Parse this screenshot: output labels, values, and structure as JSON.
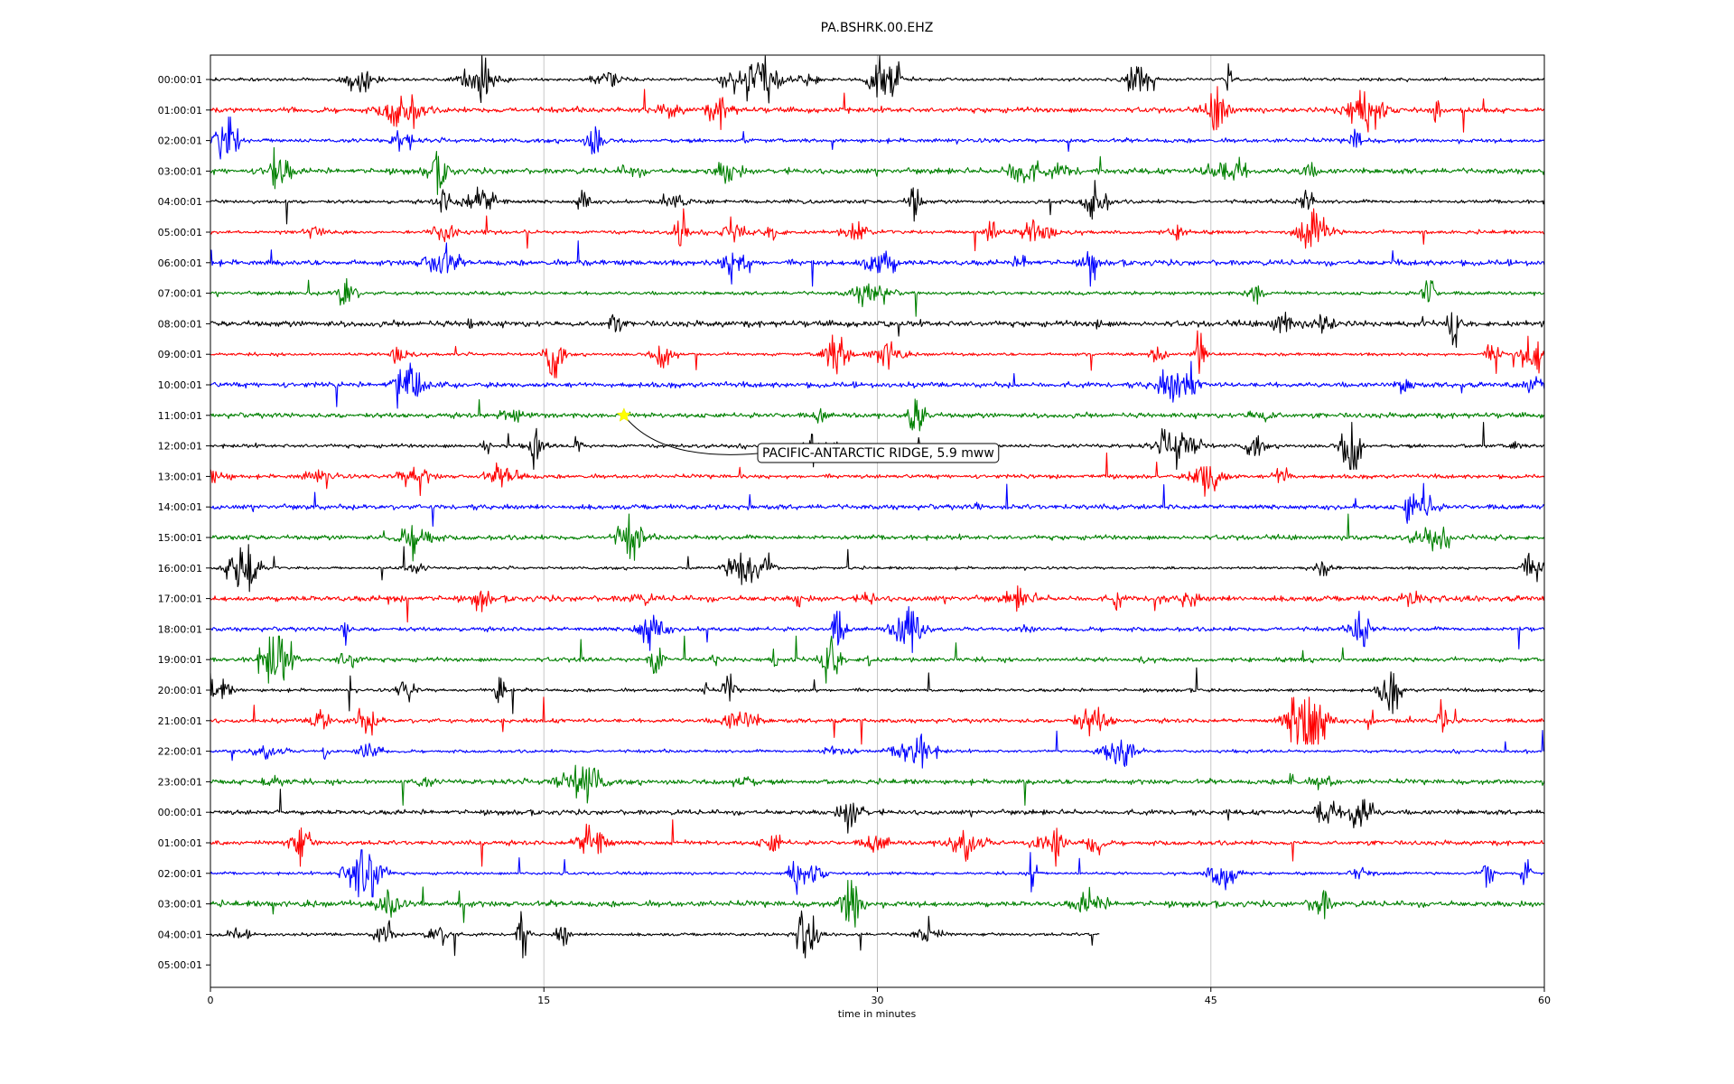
{
  "chart_data": {
    "type": "line",
    "title": "PA.BSHRK.00.EHZ",
    "xlabel": "time in minutes",
    "ylabel": "",
    "xlim": [
      0,
      60
    ],
    "x_ticks": [
      0,
      15,
      30,
      45,
      60
    ],
    "x_tick_labels": [
      "0",
      "15",
      "30",
      "45",
      "60"
    ],
    "grid": "vertical",
    "row_labels": [
      "00:00:01",
      "01:00:01",
      "02:00:01",
      "03:00:01",
      "04:00:01",
      "05:00:01",
      "06:00:01",
      "07:00:01",
      "08:00:01",
      "09:00:01",
      "10:00:01",
      "11:00:01",
      "12:00:01",
      "13:00:01",
      "14:00:01",
      "15:00:01",
      "16:00:01",
      "17:00:01",
      "18:00:01",
      "19:00:01",
      "20:00:01",
      "21:00:01",
      "22:00:01",
      "23:00:01",
      "00:00:01",
      "01:00:01",
      "02:00:01",
      "03:00:01",
      "04:00:01",
      "05:00:01"
    ],
    "colors": [
      "#000000",
      "#ff0000",
      "#0000ff",
      "#008000"
    ],
    "last_trace_end_minute": 40,
    "event": {
      "label": "PACIFIC-ANTARCTIC RIDGE, 5.9 mww",
      "row": "11:00:01",
      "minute": 18.6,
      "marker": "star",
      "marker_color": "#ffff00"
    }
  }
}
